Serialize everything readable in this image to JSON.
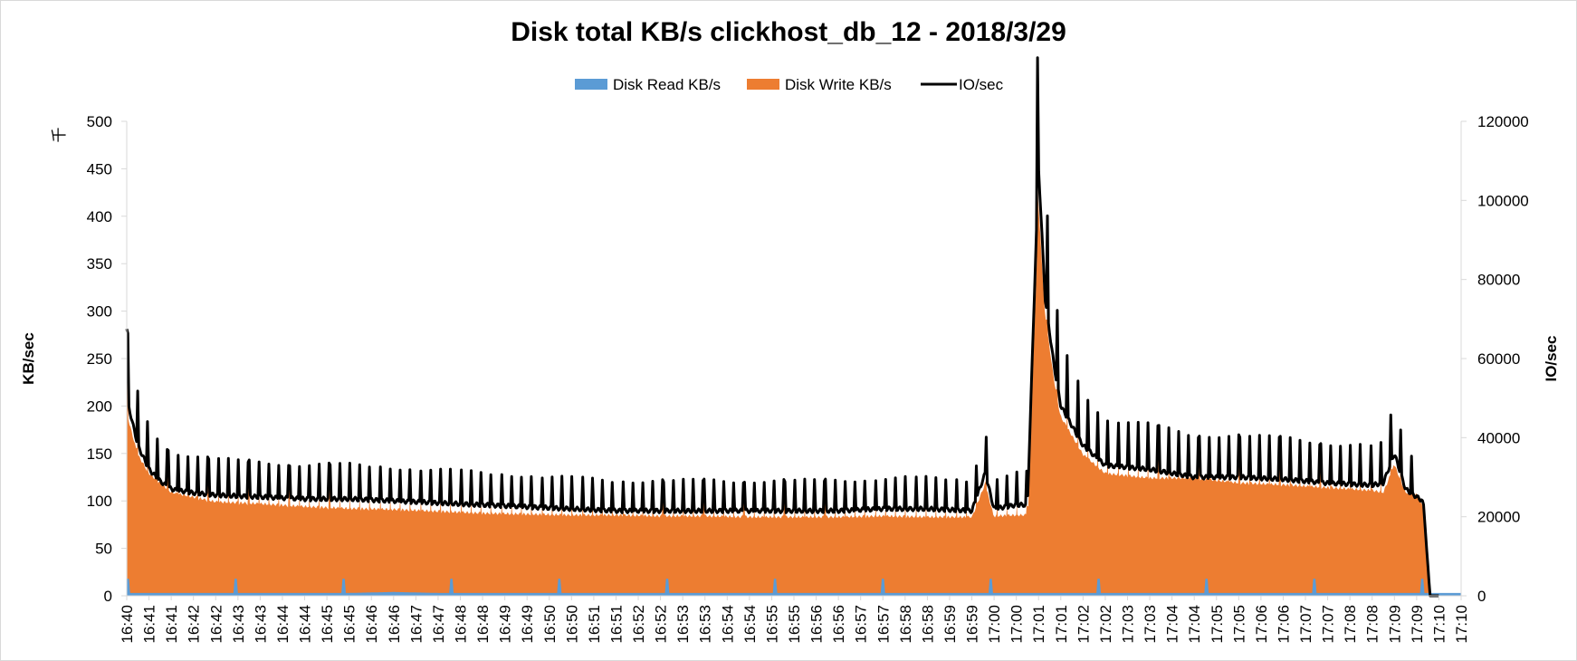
{
  "chart_data": {
    "type": "area",
    "title": "Disk total KB/s clickhost_db_12 - 2018/3/29",
    "ylabel": "KB/sec",
    "y_unit": "千",
    "y2label": "IO/sec",
    "ylim": [
      0,
      500
    ],
    "y2lim": [
      0,
      120000
    ],
    "y_ticks": [
      0,
      50,
      100,
      150,
      200,
      250,
      300,
      350,
      400,
      450,
      500
    ],
    "y2_ticks": [
      0,
      20000,
      40000,
      60000,
      80000,
      100000,
      120000
    ],
    "x_ticks": [
      "16:40",
      "16:41",
      "16:41",
      "16:42",
      "16:42",
      "16:43",
      "16:43",
      "16:44",
      "16:44",
      "16:45",
      "16:45",
      "16:46",
      "16:46",
      "16:47",
      "16:47",
      "16:48",
      "16:48",
      "16:49",
      "16:49",
      "16:50",
      "16:50",
      "16:51",
      "16:51",
      "16:52",
      "16:52",
      "16:53",
      "16:53",
      "16:54",
      "16:54",
      "16:55",
      "16:55",
      "16:56",
      "16:56",
      "16:57",
      "16:57",
      "16:58",
      "16:58",
      "16:59",
      "16:59",
      "17:00",
      "17:00",
      "17:01",
      "17:01",
      "17:02",
      "17:02",
      "17:03",
      "17:03",
      "17:04",
      "17:04",
      "17:05",
      "17:05",
      "17:06",
      "17:06",
      "17:07",
      "17:07",
      "17:08",
      "17:08",
      "17:09",
      "17:09",
      "17:10",
      "17:10"
    ],
    "grid": false,
    "legend_position": "top-center",
    "legend": [
      "Disk Read KB/s",
      "Disk Write KB/s",
      "IO/sec"
    ],
    "colors": {
      "read": "#5b9bd5",
      "write": "#ed7d31",
      "io": "#000000"
    },
    "series": [
      {
        "name": "Disk Read KB/s",
        "axis": "left",
        "style": "area",
        "x": [
          0,
          2,
          4,
          6,
          8,
          10,
          12,
          14,
          16,
          18,
          20,
          22,
          24,
          26,
          28,
          30,
          32,
          34,
          36,
          38,
          40,
          42,
          44,
          46,
          48,
          50,
          52,
          54,
          56,
          58,
          60
        ],
        "values": [
          3,
          3,
          3,
          3,
          3,
          3,
          4,
          3,
          3,
          3,
          3,
          3,
          3,
          3,
          3,
          3,
          3,
          3,
          3,
          3,
          3,
          3,
          3,
          3,
          3,
          3,
          3,
          3,
          3,
          3,
          3
        ]
      },
      {
        "name": "Disk Write KB/s",
        "axis": "left",
        "style": "area",
        "x": [
          0,
          0.5,
          1,
          1.5,
          2,
          3,
          4,
          6,
          8,
          10,
          12,
          14,
          16,
          18,
          20,
          22,
          24,
          26,
          28,
          30,
          32,
          34,
          36,
          38,
          38.6,
          39,
          40,
          40.5,
          41,
          41.3,
          41.7,
          42,
          43,
          44,
          46,
          48,
          50,
          52,
          54,
          56,
          56.5,
          57,
          57.5,
          58,
          58.3,
          58.6,
          59
        ],
        "values": [
          195,
          150,
          130,
          120,
          110,
          105,
          100,
          98,
          95,
          93,
          92,
          90,
          88,
          87,
          86,
          86,
          85,
          85,
          84,
          84,
          84,
          85,
          84,
          84,
          120,
          85,
          86,
          86,
          420,
          300,
          230,
          190,
          150,
          130,
          125,
          125,
          120,
          118,
          115,
          112,
          110,
          140,
          110,
          108,
          95,
          0,
          0
        ]
      },
      {
        "name": "IO/sec",
        "axis": "right",
        "style": "line",
        "x": [
          0,
          0.5,
          1,
          1.5,
          2,
          3,
          4,
          6,
          8,
          10,
          12,
          14,
          16,
          18,
          20,
          22,
          24,
          26,
          28,
          30,
          32,
          34,
          36,
          38,
          38.6,
          39,
          40,
          40.5,
          41,
          41.3,
          41.7,
          42,
          43,
          44,
          46,
          48,
          50,
          52,
          54,
          56,
          56.5,
          57,
          57.5,
          58,
          58.3,
          58.6,
          59
        ],
        "values": [
          50000,
          38000,
          32000,
          29000,
          27000,
          26000,
          25500,
          25000,
          24500,
          24500,
          24000,
          23500,
          23000,
          22500,
          22000,
          21500,
          21500,
          21500,
          21500,
          21500,
          21500,
          22000,
          22000,
          21500,
          31000,
          22000,
          23000,
          23000,
          108000,
          75000,
          58000,
          48000,
          38000,
          33000,
          32000,
          30000,
          30000,
          29500,
          28500,
          28000,
          28500,
          36000,
          27000,
          25000,
          24000,
          0,
          0
        ]
      }
    ]
  }
}
